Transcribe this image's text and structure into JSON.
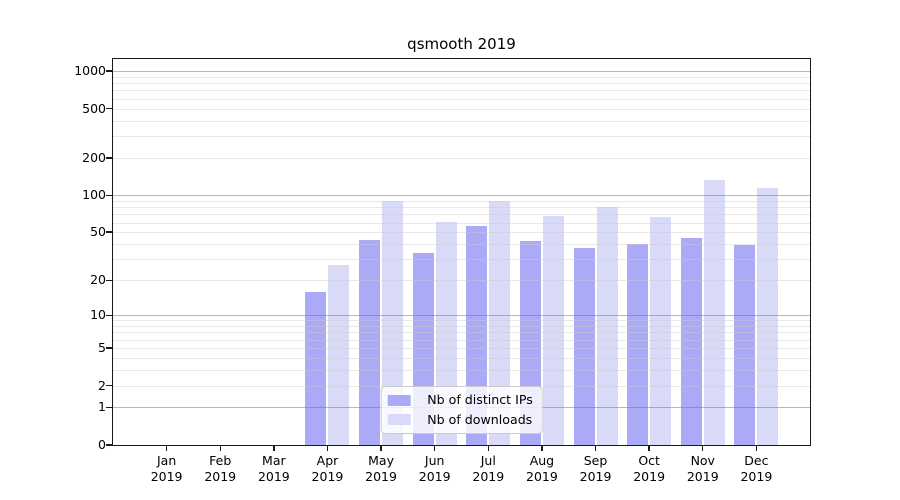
{
  "figure": {
    "background": "#ffffff"
  },
  "chart_data": {
    "type": "bar",
    "title": "qsmooth 2019",
    "year_label": "2019",
    "months": [
      "Jan",
      "Feb",
      "Mar",
      "Apr",
      "May",
      "Jun",
      "Jul",
      "Aug",
      "Sep",
      "Oct",
      "Nov",
      "Dec"
    ],
    "series": [
      {
        "name": "Nb of distinct IPs",
        "color": "#aaaaf6",
        "values": [
          0,
          0,
          0,
          16,
          43,
          34,
          56,
          42,
          37,
          40,
          45,
          39
        ]
      },
      {
        "name": "Nb of downloads",
        "color": "#d9d9f8",
        "values": [
          0,
          0,
          0,
          27,
          89,
          61,
          89,
          68,
          80,
          66,
          134,
          115
        ]
      }
    ],
    "y_axis": {
      "scale": "log10(1+v)",
      "ticks": [
        0,
        1,
        2,
        5,
        10,
        20,
        50,
        100,
        200,
        500,
        1000
      ],
      "top_value": 1250,
      "major_gridlines": [
        1,
        10,
        100,
        1000
      ],
      "minor_gridlines_rule": "2-9 times 1, 10, 100"
    },
    "x_axis": {
      "tick_count": 12,
      "label_format": "Month over Year, two lines"
    },
    "legend": {
      "position": "lower center"
    },
    "grid": true
  }
}
